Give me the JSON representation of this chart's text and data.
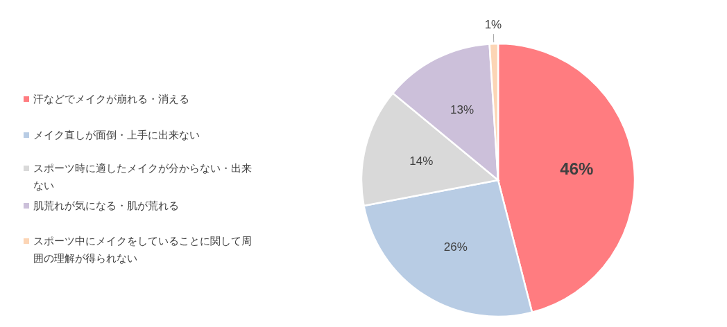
{
  "chart_data": {
    "type": "pie",
    "categories": [
      "汗などでメイクが崩れる・消える",
      "メイク直しが面倒・上手に出来ない",
      "スポーツ時に適したメイクが分からない・出来ない",
      "肌荒れが気になる・肌が荒れる",
      "スポーツ中にメイクをしていることに関して周囲の理解が得られない"
    ],
    "values": [
      46,
      26,
      14,
      13,
      1
    ],
    "colors": [
      "#ff7c80",
      "#b8cce4",
      "#d9d9d9",
      "#ccc0da",
      "#fcd5b5"
    ],
    "value_labels": [
      "46%",
      "26%",
      "14%",
      "13%",
      "1%"
    ],
    "legend": "left"
  }
}
